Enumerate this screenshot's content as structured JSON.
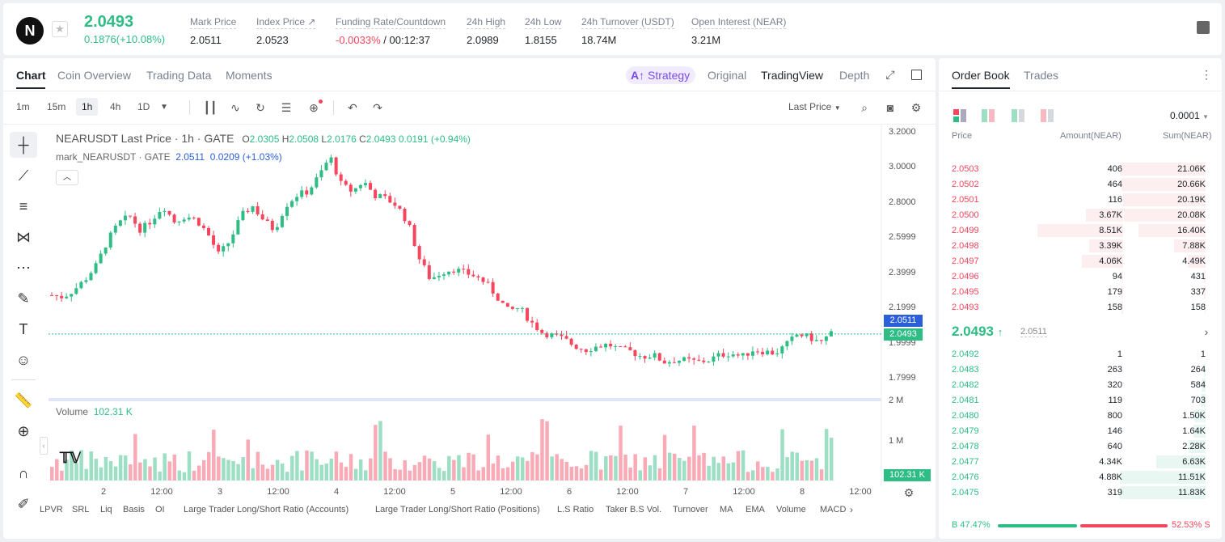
{
  "ticker": {
    "logo": "N",
    "price": "2.0493",
    "change": "0.1876(+10.08%)"
  },
  "stats": [
    {
      "label": "Mark Price",
      "value": "2.0511"
    },
    {
      "label": "Index Price ↗",
      "value": "2.0523"
    },
    {
      "label": "Funding Rate/Countdown",
      "value_red": "-0.0033%",
      "value": " / 00:12:37"
    },
    {
      "label": "24h High",
      "value": "2.0989"
    },
    {
      "label": "24h Low",
      "value": "1.8155"
    },
    {
      "label": "24h Turnover (USDT)",
      "value": "18.74M"
    },
    {
      "label": "Open Interest (NEAR)",
      "value": "3.21M"
    }
  ],
  "chart_tabs": [
    "Chart",
    "Coin Overview",
    "Trading Data",
    "Moments"
  ],
  "view_tabs": {
    "strategy": "Strategy",
    "original": "Original",
    "tradingview": "TradingView",
    "depth": "Depth"
  },
  "timeframes": [
    "1m",
    "15m",
    "1h",
    "4h",
    "1D"
  ],
  "price_type": "Last Price",
  "legend": {
    "title": "NEARUSDT Last Price · 1h · GATE",
    "o": "2.0305",
    "h": "2.0508",
    "l": "2.0176",
    "c": "2.0493",
    "chg": "0.0191 (+0.94%)",
    "mark": "mark_NEARUSDT · GATE",
    "mark_v": "2.0511",
    "mark_chg": "0.0209 (+1.03%)",
    "volume": "Volume",
    "volume_v": "102.31 K"
  },
  "y_ticks": [
    "3.2000",
    "3.0000",
    "2.8000",
    "2.5999",
    "2.3999",
    "2.1999",
    "1.9999",
    "1.7999"
  ],
  "price_labels": {
    "mark": "2.0511",
    "last": "2.0493",
    "vol": "102.31 K"
  },
  "vol_ticks": [
    "2 M",
    "1 M"
  ],
  "x_ticks": [
    "2",
    "12:00",
    "3",
    "12:00",
    "4",
    "12:00",
    "5",
    "12:00",
    "6",
    "12:00",
    "7",
    "12:00",
    "8",
    "12:00"
  ],
  "indicators": [
    "LPVR",
    "SRL",
    "Liq",
    "Basis",
    "OI",
    "Large Trader Long/Short Ratio (Accounts)",
    "Large Trader Long/Short Ratio (Positions)",
    "L.S Ratio",
    "Taker B.S Vol.",
    "Turnover",
    "MA",
    "EMA",
    "Volume",
    "MACD"
  ],
  "orderbook": {
    "tabs": [
      "Order Book",
      "Trades"
    ],
    "precision": "0.0001",
    "headers": [
      "Price",
      "Amount(NEAR)",
      "Sum(NEAR)"
    ],
    "asks": [
      [
        "2.0503",
        "406",
        "21.06K",
        1.0,
        0
      ],
      [
        "2.0502",
        "464",
        "20.66K",
        0.98,
        0
      ],
      [
        "2.0501",
        "116",
        "20.19K",
        0.96,
        0
      ],
      [
        "2.0500",
        "3.67K",
        "20.08K",
        0.95,
        0.43
      ],
      [
        "2.0499",
        "8.51K",
        "16.40K",
        0.78,
        1.0
      ],
      [
        "2.0498",
        "3.39K",
        "7.88K",
        0.37,
        0.4
      ],
      [
        "2.0497",
        "4.06K",
        "4.49K",
        0.21,
        0.48
      ],
      [
        "2.0496",
        "94",
        "431",
        0.02,
        0.01
      ],
      [
        "2.0495",
        "179",
        "337",
        0.016,
        0.02
      ],
      [
        "2.0493",
        "158",
        "158",
        0.008,
        0.02
      ]
    ],
    "last": "2.0493",
    "last_mark": "2.0511",
    "bids": [
      [
        "2.0492",
        "1",
        "1",
        0.0,
        0
      ],
      [
        "2.0483",
        "263",
        "264",
        0.02,
        0
      ],
      [
        "2.0482",
        "320",
        "584",
        0.05,
        0
      ],
      [
        "2.0481",
        "119",
        "703",
        0.06,
        0
      ],
      [
        "2.0480",
        "800",
        "1.50K",
        0.13,
        0
      ],
      [
        "2.0479",
        "146",
        "1.64K",
        0.14,
        0
      ],
      [
        "2.0478",
        "640",
        "2.28K",
        0.2,
        0
      ],
      [
        "2.0477",
        "4.34K",
        "6.63K",
        0.58,
        0
      ],
      [
        "2.0476",
        "4.88K",
        "11.51K",
        1.0,
        0
      ],
      [
        "2.0475",
        "319",
        "11.83K",
        1.0,
        0
      ]
    ],
    "buy": "B 47.47%",
    "sell": "52.53% S",
    "buy_ratio": 0.4747
  },
  "chart_data": {
    "type": "candlestick",
    "title": "NEARUSDT Last Price · 1h · GATE",
    "ylim": [
      1.7,
      3.22
    ],
    "x": [
      "2",
      "12:00",
      "3",
      "12:00",
      "4",
      "12:00",
      "5",
      "12:00",
      "6",
      "12:00",
      "7",
      "12:00",
      "8",
      "12:00"
    ],
    "close_path": [
      2.27,
      2.26,
      2.3,
      2.36,
      2.44,
      2.58,
      2.68,
      2.72,
      2.64,
      2.7,
      2.78,
      2.69,
      2.72,
      2.7,
      2.62,
      2.5,
      2.58,
      2.72,
      2.78,
      2.7,
      2.64,
      2.78,
      2.84,
      2.86,
      2.95,
      3.06,
      2.9,
      2.86,
      2.92,
      2.84,
      2.82,
      2.78,
      2.68,
      2.48,
      2.36,
      2.4,
      2.42,
      2.4,
      2.38,
      2.34,
      2.26,
      2.18,
      2.2,
      2.12,
      2.06,
      2.04,
      2.02,
      1.98,
      1.96,
      1.98,
      1.99,
      1.96,
      1.95,
      1.92,
      1.93,
      1.89,
      1.9,
      1.9,
      1.89,
      1.9,
      1.93,
      1.94,
      1.92,
      1.96,
      1.95,
      1.94,
      1.99,
      2.05,
      2.03,
      2.0,
      2.05
    ],
    "last": 2.0493,
    "mark": 2.0511,
    "volume_note": "Volume 102.31 K"
  }
}
